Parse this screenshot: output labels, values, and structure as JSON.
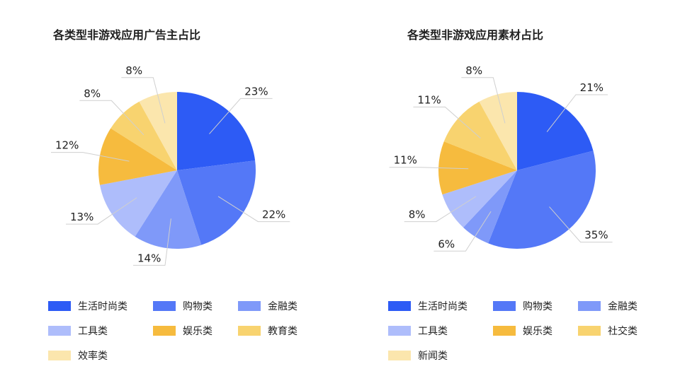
{
  "chart_data": [
    {
      "type": "pie",
      "title": "各类型非游戏应用广告主占比",
      "categories": [
        "生活时尚类",
        "购物类",
        "金融类",
        "工具类",
        "娱乐类",
        "教育类",
        "效率类"
      ],
      "values": [
        23,
        22,
        14,
        13,
        12,
        8,
        8
      ],
      "labels": [
        "23%",
        "22%",
        "14%",
        "13%",
        "12%",
        "8%",
        "8%"
      ],
      "colors": [
        "#2d5bf5",
        "#5478f7",
        "#7f99f9",
        "#aebdfb",
        "#f6bb3e",
        "#f8d36f",
        "#fbe6ad"
      ],
      "legend": "bottom"
    },
    {
      "type": "pie",
      "title": "各类型非游戏应用素材占比",
      "categories": [
        "生活时尚类",
        "购物类",
        "金融类",
        "工具类",
        "娱乐类",
        "社交类",
        "新闻类"
      ],
      "values": [
        21,
        35,
        6,
        8,
        11,
        11,
        8
      ],
      "labels": [
        "21%",
        "35%",
        "6%",
        "8%",
        "11%",
        "11%",
        "8%"
      ],
      "colors": [
        "#2d5bf5",
        "#5478f7",
        "#7f99f9",
        "#aebdfb",
        "#f6bb3e",
        "#f8d36f",
        "#fbe6ad"
      ],
      "legend": "bottom"
    }
  ]
}
